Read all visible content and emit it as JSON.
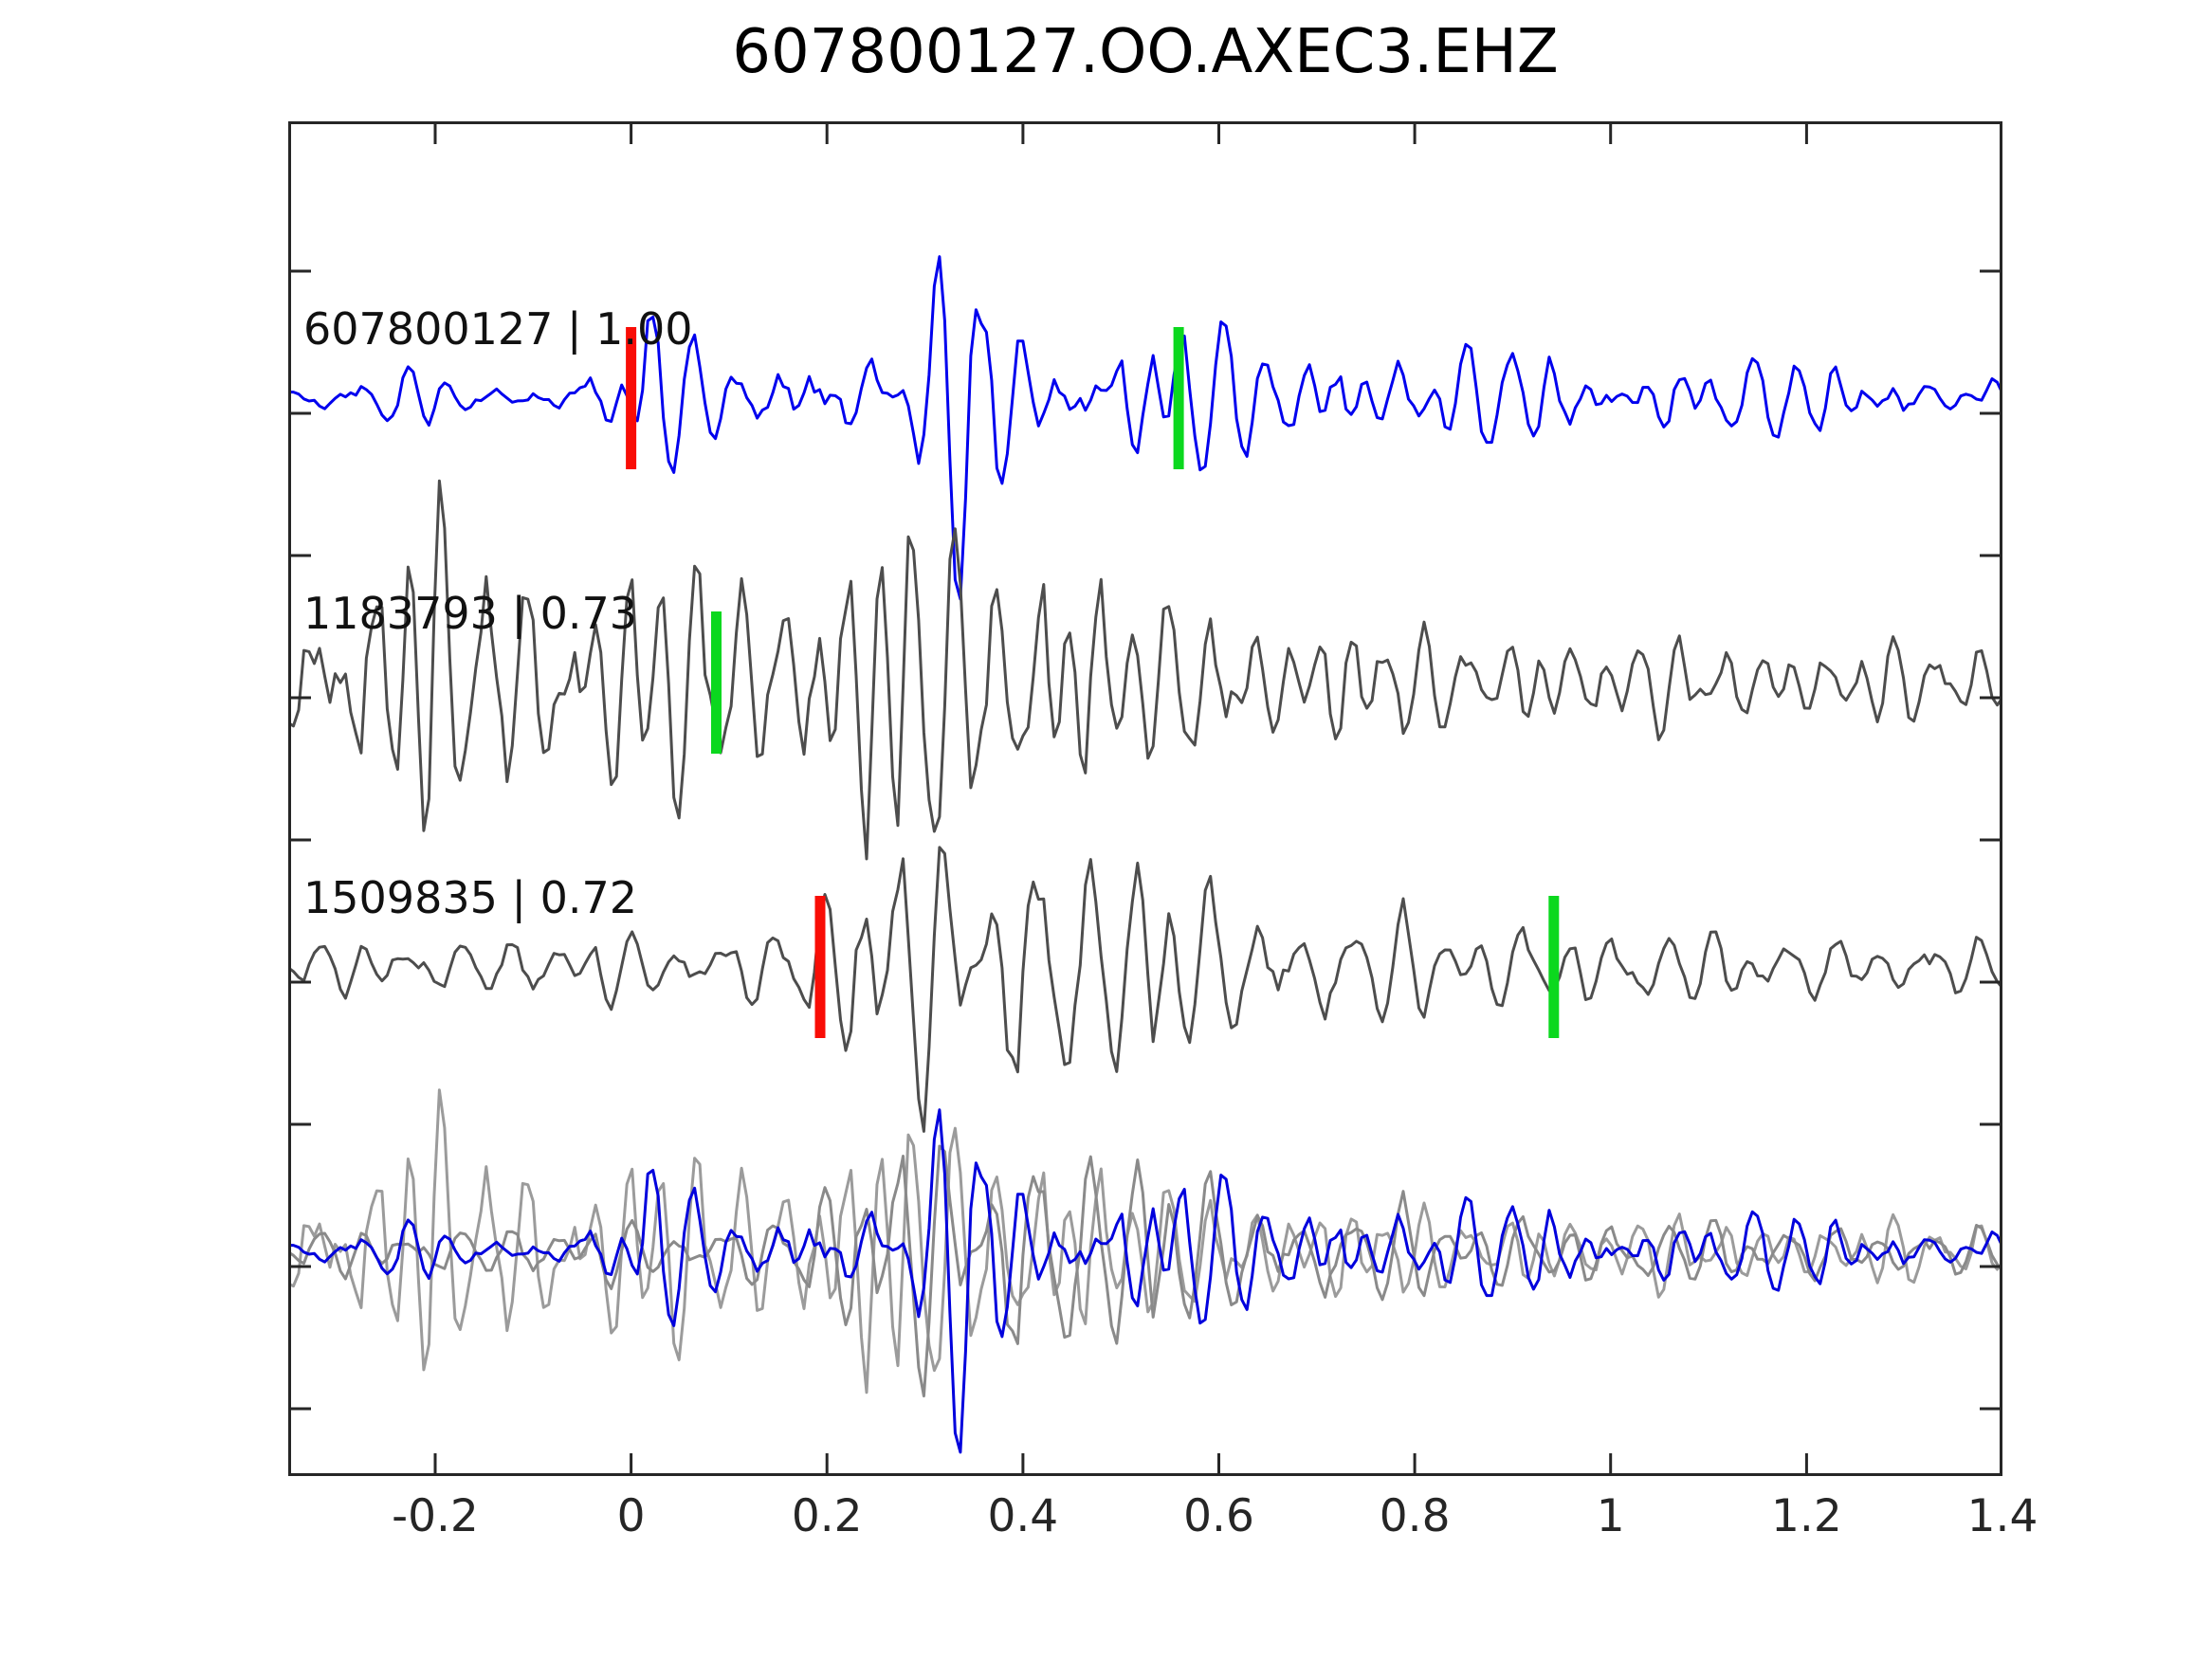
{
  "chart_data": {
    "type": "line",
    "title": "607800127.OO.AXEC3.EHZ",
    "xlabel": "",
    "ylabel": "",
    "xlim": [
      -0.35,
      1.4
    ],
    "grid": false,
    "legend": "none",
    "xticks": [
      -0.2,
      0,
      0.2,
      0.4,
      0.6,
      0.8,
      1,
      1.2,
      1.4
    ],
    "xtick_labels": [
      "-0.2",
      "0",
      "0.2",
      "0.4",
      "0.6",
      "0.8",
      "1",
      "1.2",
      "1.4"
    ],
    "colors": {
      "template_blue": "#0000ee",
      "candidate_gray": "#4d4d4d",
      "overlay_gray_1": "#9b9b9b",
      "overlay_gray_2": "#8a8a8a",
      "overlay_blue": "#0000dd",
      "pick_red": "#f90d06",
      "pick_green": "#0bd81e",
      "axis": "#262626",
      "text": "#111111"
    },
    "traces": [
      {
        "id": "607800127",
        "label": "607800127 | 1.00",
        "similarity": "1.00",
        "color_key": "template_blue",
        "row": 1,
        "freq": 24,
        "seed": 7,
        "picks": [
          {
            "t": 0.0,
            "color_key": "pick_red"
          },
          {
            "t": 0.559,
            "color_key": "pick_green"
          }
        ],
        "envelope": [
          [
            -0.35,
            24
          ],
          [
            -0.06,
            26
          ],
          [
            0.005,
            110
          ],
          [
            0.04,
            62
          ],
          [
            0.12,
            60
          ],
          [
            0.22,
            64
          ],
          [
            0.3,
            74
          ],
          [
            0.345,
            215
          ],
          [
            0.39,
            120
          ],
          [
            0.45,
            88
          ],
          [
            0.6,
            76
          ],
          [
            0.75,
            60
          ],
          [
            1.0,
            46
          ],
          [
            1.2,
            40
          ],
          [
            1.4,
            34
          ]
        ]
      },
      {
        "id": "1183793",
        "label": "1183793 | 0.73",
        "similarity": "0.73",
        "color_key": "candidate_gray",
        "row": 2,
        "freq": 27,
        "seed": 23,
        "picks": [
          {
            "t": 0.087,
            "color_key": "pick_green"
          }
        ],
        "envelope": [
          [
            -0.35,
            70
          ],
          [
            -0.3,
            150
          ],
          [
            -0.2,
            160
          ],
          [
            -0.1,
            150
          ],
          [
            0.0,
            130
          ],
          [
            0.1,
            112
          ],
          [
            0.18,
            125
          ],
          [
            0.25,
            168
          ],
          [
            0.33,
            190
          ],
          [
            0.42,
            150
          ],
          [
            0.5,
            95
          ],
          [
            0.6,
            70
          ],
          [
            0.72,
            60
          ],
          [
            0.9,
            50
          ],
          [
            1.1,
            44
          ],
          [
            1.4,
            36
          ]
        ]
      },
      {
        "id": "1509835",
        "label": "1509835 | 0.72",
        "similarity": "0.72",
        "color_key": "candidate_gray",
        "row": 3,
        "freq": 22,
        "seed": 51,
        "picks": [
          {
            "t": 0.193,
            "color_key": "pick_red"
          },
          {
            "t": 0.942,
            "color_key": "pick_green"
          }
        ],
        "envelope": [
          [
            -0.35,
            26
          ],
          [
            -0.1,
            32
          ],
          [
            0.1,
            36
          ],
          [
            0.17,
            48
          ],
          [
            0.22,
            105
          ],
          [
            0.3,
            140
          ],
          [
            0.36,
            178
          ],
          [
            0.45,
            130
          ],
          [
            0.55,
            100
          ],
          [
            0.65,
            72
          ],
          [
            0.8,
            56
          ],
          [
            0.95,
            46
          ],
          [
            1.1,
            40
          ],
          [
            1.4,
            26
          ]
        ]
      }
    ],
    "overlay_row": 4,
    "overlay": [
      {
        "ref": 1,
        "scale": 0.8,
        "color_key": "overlay_gray_1"
      },
      {
        "ref": 2,
        "scale": 0.88,
        "color_key": "overlay_gray_2"
      },
      {
        "ref": 0,
        "scale": 1.0,
        "color_key": "overlay_blue"
      }
    ]
  }
}
